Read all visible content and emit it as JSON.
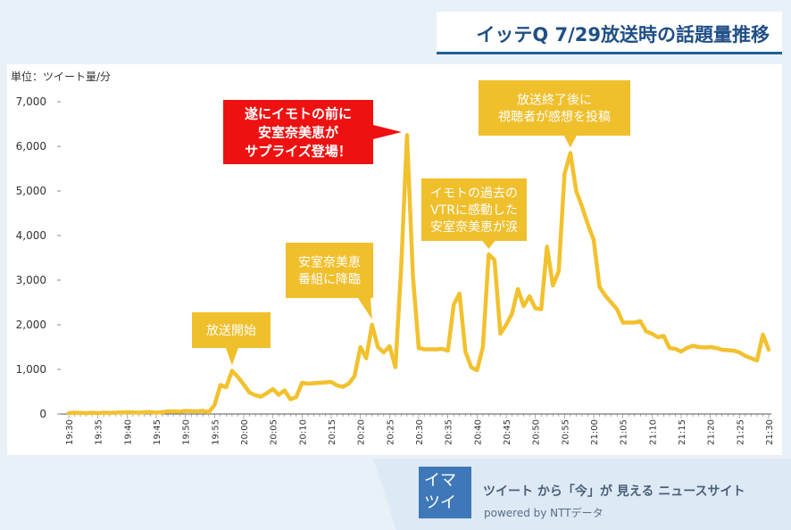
{
  "header": {
    "title": "イッテQ 7/29放送時の話題量推移"
  },
  "chart_data": {
    "type": "line",
    "unit_label": "単位：ツイート量/分",
    "x_tick_labels": [
      "19:30",
      "19:35",
      "19:40",
      "19:45",
      "19:50",
      "19:55",
      "20:00",
      "20:05",
      "20:10",
      "20:15",
      "20:20",
      "20:25",
      "20:30",
      "20:35",
      "20:40",
      "20:45",
      "20:50",
      "20:55",
      "21:00",
      "21:05",
      "21:10",
      "21:15",
      "21:20",
      "21:25",
      "21:30"
    ],
    "ylim": [
      0,
      7000
    ],
    "y_ticks": [
      0,
      1000,
      2000,
      3000,
      4000,
      5000,
      6000,
      7000
    ],
    "y_tick_labels": [
      "0",
      "1,000",
      "2,000",
      "3,000",
      "4,000",
      "5,000",
      "6,000",
      "7,000"
    ],
    "grid": false,
    "series": [
      {
        "name": "ツイート量/分",
        "color": "#f2c12e",
        "x_minutes": [
          0,
          1,
          2,
          3,
          4,
          5,
          6,
          7,
          8,
          9,
          10,
          11,
          12,
          13,
          14,
          15,
          16,
          17,
          18,
          19,
          20,
          21,
          22,
          23,
          24,
          25,
          26,
          27,
          28,
          29,
          30,
          31,
          32,
          33,
          34,
          35,
          36,
          37,
          38,
          39,
          40,
          41,
          42,
          43,
          44,
          45,
          46,
          47,
          48,
          49,
          50,
          51,
          52,
          53,
          54,
          55,
          56,
          57,
          58,
          59,
          60,
          61,
          62,
          63,
          64,
          65,
          66,
          67,
          68,
          69,
          70,
          71,
          72,
          73,
          74,
          75,
          76,
          77,
          78,
          79,
          80,
          81,
          82,
          83,
          84,
          85,
          86,
          87,
          88,
          89,
          90,
          91,
          92,
          93,
          94,
          95,
          96,
          97,
          98,
          99,
          100,
          101,
          102,
          103,
          104,
          105,
          106,
          107,
          108,
          109,
          110,
          111,
          112,
          113,
          114,
          115,
          116,
          117,
          118,
          119,
          120
        ],
        "values": [
          20,
          30,
          25,
          20,
          30,
          20,
          30,
          25,
          30,
          35,
          40,
          35,
          30,
          40,
          45,
          30,
          40,
          60,
          60,
          50,
          70,
          65,
          60,
          70,
          40,
          200,
          650,
          600,
          970,
          830,
          660,
          480,
          420,
          390,
          470,
          560,
          430,
          530,
          330,
          380,
          700,
          680,
          690,
          700,
          710,
          720,
          640,
          610,
          680,
          850,
          1500,
          1250,
          2000,
          1500,
          1380,
          1520,
          1050,
          3300,
          6250,
          3100,
          1480,
          1450,
          1450,
          1450,
          1460,
          1420,
          2450,
          2700,
          1400,
          1050,
          980,
          1500,
          3580,
          3450,
          1800,
          2000,
          2250,
          2800,
          2420,
          2640,
          2370,
          2350,
          3750,
          2880,
          3200,
          5380,
          5850,
          5000,
          4650,
          4250,
          3900,
          2850,
          2650,
          2500,
          2350,
          2050,
          2050,
          2050,
          2080,
          1850,
          1800,
          1720,
          1750,
          1480,
          1460,
          1400,
          1480,
          1530,
          1500,
          1490,
          1500,
          1480,
          1440,
          1430,
          1420,
          1380,
          1300,
          1250,
          1200,
          1780,
          1440
        ]
      }
    ],
    "annotations": [
      {
        "lines": [
          "放送開始"
        ],
        "x_minute": 28,
        "value": 970,
        "style": "yellow"
      },
      {
        "lines": [
          "安室奈美恵",
          "番組に降臨"
        ],
        "x_minute": 52,
        "value": 2000,
        "style": "yellow"
      },
      {
        "lines": [
          "遂にイモトの前に",
          "安室奈美恵が",
          "サプライズ登場！"
        ],
        "x_minute": 58,
        "value": 6250,
        "style": "red"
      },
      {
        "lines": [
          "イモトの過去の",
          "VTRに感動した",
          "安室奈美恵が涙"
        ],
        "x_minute": 72,
        "value": 3580,
        "style": "yellow"
      },
      {
        "lines": [
          "放送終了後に",
          "視聴者が感想を投稿"
        ],
        "x_minute": 86,
        "value": 5850,
        "style": "yellow"
      }
    ]
  },
  "footer": {
    "logo_line1": "イマ",
    "logo_line2": "ツイ",
    "tagline": "ツイート から「今」が 見える ニュースサイト",
    "powered": "powered by  NTTデータ"
  },
  "colors": {
    "line": "#f2c12e",
    "callout_yellow": "#f0bf2c",
    "callout_red": "#ee1111",
    "title_text": "#1f4f86",
    "logo_bg": "#3f78b8"
  }
}
